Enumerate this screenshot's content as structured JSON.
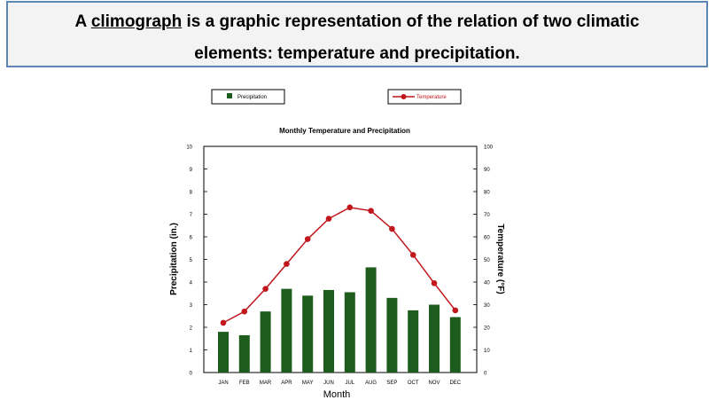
{
  "banner": {
    "prefix": "A ",
    "term": "climograph",
    "rest_line1": " is a graphic representation of the relation of two climatic",
    "line2": "elements: temperature and precipitation."
  },
  "colors": {
    "bars": "#1e5c1e",
    "line": "#c0161c",
    "banner_border": "#5b86b6",
    "banner_bg": "#f3f3f3"
  },
  "chart_data": {
    "type": "bar+line",
    "title": "Monthly Temperature and Precipitation",
    "xlabel": "Month",
    "ylabel_left": "Precipitation (in.)",
    "ylabel_right": "Temperature (°F)",
    "categories": [
      "JAN",
      "FEB",
      "MAR",
      "APR",
      "MAY",
      "JUN",
      "JUL",
      "AUG",
      "SEP",
      "OCT",
      "NOV",
      "DEC"
    ],
    "series": [
      {
        "name": "Precipitation",
        "type": "bar",
        "axis": "left",
        "values": [
          1.8,
          1.65,
          2.7,
          3.7,
          3.4,
          3.65,
          3.55,
          4.65,
          3.3,
          2.75,
          3.0,
          2.45
        ]
      },
      {
        "name": "Temperature",
        "type": "line",
        "axis": "right",
        "values": [
          22,
          27,
          37,
          48,
          59,
          68,
          73,
          71.5,
          63.5,
          52,
          39.5,
          27.5
        ]
      }
    ],
    "ylim_left": [
      0,
      10
    ],
    "yticks_left": [
      "0",
      "1",
      "2",
      "3",
      "4",
      "5",
      "6",
      "7",
      "8",
      "9",
      "10"
    ],
    "ylim_right": [
      0,
      100
    ],
    "yticks_right": [
      "0",
      "10",
      "20",
      "30",
      "40",
      "50",
      "60",
      "70",
      "80",
      "90",
      "100"
    ],
    "legend": [
      "Precipitation",
      "Temperature"
    ],
    "legend_placement": "top"
  }
}
